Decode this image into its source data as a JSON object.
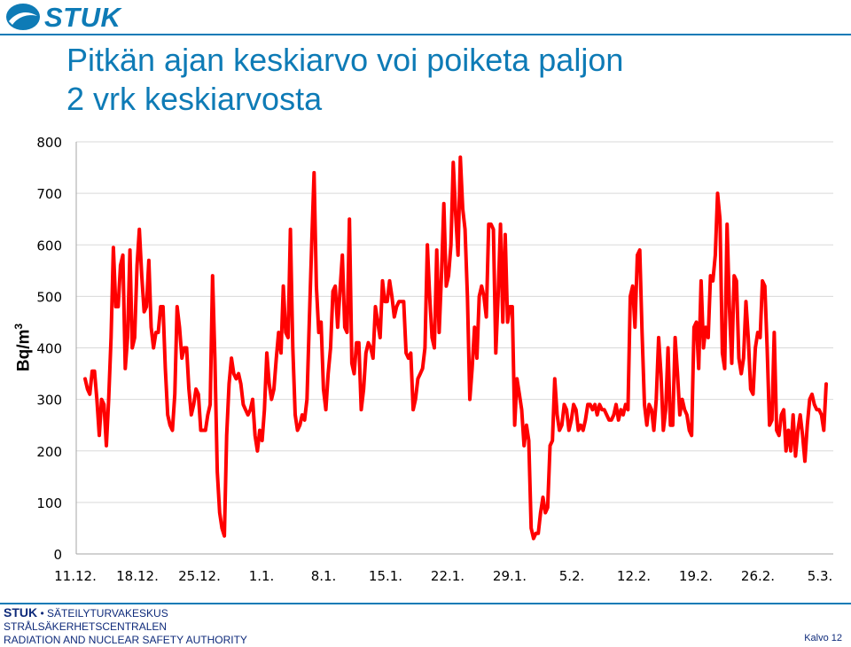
{
  "header": {
    "logo_text": "STUK",
    "title_line1": "Pitkän ajan keskiarvo voi poiketa paljon",
    "title_line2": "2 vrk keskiarvosta"
  },
  "chart_data": {
    "type": "line",
    "title": "",
    "xlabel": "",
    "ylabel": "Bq/m",
    "ylabel_sup": "3",
    "ylim": [
      0,
      800
    ],
    "yticks": [
      0,
      100,
      200,
      300,
      400,
      500,
      600,
      700,
      800
    ],
    "x_tick_labels": [
      "11.12.",
      "18.12.",
      "25.12.",
      "1.1.",
      "8.1.",
      "15.1.",
      "22.1.",
      "29.1.",
      "5.2.",
      "12.2.",
      "19.2.",
      "26.2.",
      "5.3."
    ],
    "grid": "horizontal",
    "series": [
      {
        "color": "#ff0000",
        "values": [
          340,
          320,
          310,
          355,
          355,
          300,
          230,
          300,
          290,
          210,
          300,
          420,
          595,
          480,
          480,
          560,
          580,
          360,
          420,
          590,
          400,
          420,
          560,
          630,
          540,
          470,
          480,
          570,
          440,
          400,
          430,
          430,
          480,
          480,
          360,
          270,
          250,
          240,
          310,
          480,
          440,
          380,
          400,
          400,
          320,
          270,
          290,
          320,
          310,
          240,
          240,
          240,
          270,
          290,
          540,
          380,
          160,
          80,
          50,
          35,
          230,
          330,
          380,
          350,
          340,
          350,
          330,
          290,
          280,
          270,
          280,
          300,
          230,
          200,
          240,
          220,
          280,
          390,
          330,
          300,
          320,
          380,
          430,
          390,
          520,
          430,
          420,
          630,
          400,
          270,
          240,
          250,
          270,
          260,
          300,
          450,
          600,
          740,
          520,
          430,
          450,
          320,
          280,
          350,
          400,
          510,
          520,
          440,
          510,
          580,
          440,
          430,
          650,
          370,
          350,
          410,
          410,
          280,
          320,
          390,
          410,
          400,
          380,
          480,
          450,
          420,
          530,
          490,
          490,
          530,
          500,
          460,
          480,
          490,
          490,
          490,
          390,
          380,
          390,
          280,
          300,
          340,
          350,
          360,
          400,
          600,
          500,
          420,
          400,
          590,
          430,
          540,
          680,
          520,
          540,
          600,
          760,
          660,
          580,
          770,
          670,
          630,
          500,
          300,
          360,
          440,
          380,
          500,
          520,
          500,
          460,
          640,
          640,
          630,
          390,
          500,
          640,
          450,
          620,
          450,
          480,
          480,
          250,
          340,
          310,
          280,
          210,
          250,
          220,
          50,
          30,
          40,
          40,
          80,
          110,
          80,
          90,
          210,
          220,
          340,
          270,
          240,
          250,
          290,
          280,
          240,
          260,
          290,
          280,
          240,
          250,
          240,
          260,
          290,
          290,
          280,
          290,
          270,
          290,
          280,
          280,
          270,
          260,
          260,
          270,
          290,
          260,
          280,
          270,
          290,
          280,
          500,
          520,
          440,
          580,
          590,
          430,
          290,
          250,
          290,
          280,
          240,
          300,
          420,
          350,
          240,
          280,
          400,
          250,
          250,
          420,
          350,
          270,
          300,
          280,
          270,
          240,
          230,
          440,
          450,
          360,
          530,
          400,
          440,
          420,
          540,
          530,
          580,
          700,
          650,
          390,
          360,
          640,
          480,
          370,
          540,
          530,
          380,
          350,
          380,
          490,
          420,
          320,
          310,
          400,
          430,
          420,
          530,
          520,
          400,
          250,
          260,
          430,
          240,
          230,
          270,
          280,
          200,
          240,
          200,
          270,
          190,
          240,
          270,
          230,
          180,
          250,
          300,
          310,
          290,
          280,
          280,
          270,
          240,
          330
        ]
      }
    ]
  },
  "footer": {
    "brand": "STUK",
    "line1_rest": " • SÄTEILYTURVAKESKUS",
    "line2": "STRÅLSÄKERHETSCENTRALEN",
    "line3": "RADIATION AND NUCLEAR SAFETY AUTHORITY",
    "slide_label": "Kalvo 12"
  }
}
